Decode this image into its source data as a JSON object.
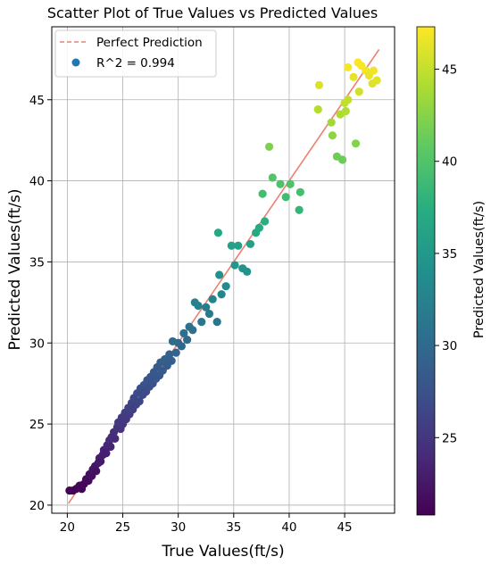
{
  "chart_data": {
    "type": "scatter",
    "title": "Scatter Plot of True Values vs Predicted Values",
    "xlabel": "True Values(ft/s)",
    "ylabel": "Predicted Values(ft/s)",
    "xlim": [
      18.6,
      49.5
    ],
    "ylim": [
      19.5,
      49.5
    ],
    "x_ticks": [
      20,
      25,
      30,
      35,
      40,
      45
    ],
    "y_ticks": [
      20,
      25,
      30,
      35,
      40,
      45
    ],
    "grid": true,
    "legend_position": "top-left",
    "legend": [
      {
        "label": "Perfect Prediction",
        "kind": "line",
        "color": "#f07f6f"
      },
      {
        "label": "R^2 = 0.994",
        "kind": "marker",
        "color": "#1f77b4"
      }
    ],
    "reference_line": {
      "x": [
        20.1,
        48.1
      ],
      "y": [
        20.1,
        48.1
      ],
      "color": "#f07f6f"
    },
    "colorbar": {
      "label": "Predicted Values(ft/s)",
      "colormap": "viridis",
      "range": [
        20.8,
        47.3
      ],
      "ticks": [
        25,
        30,
        35,
        40,
        45
      ]
    },
    "series": [
      {
        "points": [
          [
            20.2,
            20.9
          ],
          [
            20.5,
            20.9
          ],
          [
            20.8,
            21.0
          ],
          [
            21.1,
            21.2
          ],
          [
            21.3,
            21.0
          ],
          [
            21.5,
            21.3
          ],
          [
            21.7,
            21.6
          ],
          [
            21.9,
            21.5
          ],
          [
            22.0,
            21.9
          ],
          [
            22.2,
            21.8
          ],
          [
            22.3,
            22.2
          ],
          [
            22.5,
            22.4
          ],
          [
            22.6,
            22.1
          ],
          [
            22.8,
            22.6
          ],
          [
            22.9,
            22.9
          ],
          [
            23.0,
            22.7
          ],
          [
            23.2,
            23.1
          ],
          [
            23.3,
            23.4
          ],
          [
            23.5,
            23.2
          ],
          [
            23.6,
            23.7
          ],
          [
            23.8,
            24.0
          ],
          [
            23.9,
            23.6
          ],
          [
            24.0,
            24.2
          ],
          [
            24.2,
            24.5
          ],
          [
            24.3,
            24.1
          ],
          [
            24.5,
            24.8
          ],
          [
            24.6,
            25.1
          ],
          [
            24.8,
            24.7
          ],
          [
            24.9,
            25.4
          ],
          [
            25.0,
            25.0
          ],
          [
            25.2,
            25.7
          ],
          [
            25.3,
            25.3
          ],
          [
            25.5,
            26.0
          ],
          [
            25.6,
            25.6
          ],
          [
            25.8,
            26.3
          ],
          [
            25.9,
            25.9
          ],
          [
            26.0,
            26.6
          ],
          [
            26.2,
            26.2
          ],
          [
            26.3,
            26.9
          ],
          [
            26.5,
            26.4
          ],
          [
            26.6,
            27.2
          ],
          [
            26.8,
            26.8
          ],
          [
            26.9,
            27.4
          ],
          [
            27.1,
            27.0
          ],
          [
            27.2,
            27.7
          ],
          [
            27.4,
            27.3
          ],
          [
            27.5,
            27.9
          ],
          [
            27.7,
            27.5
          ],
          [
            27.8,
            28.2
          ],
          [
            28.0,
            27.8
          ],
          [
            28.1,
            28.5
          ],
          [
            28.3,
            28.0
          ],
          [
            28.4,
            28.8
          ],
          [
            28.6,
            28.3
          ],
          [
            28.8,
            29.0
          ],
          [
            29.0,
            28.6
          ],
          [
            29.2,
            29.3
          ],
          [
            29.4,
            28.9
          ],
          [
            29.5,
            30.1
          ],
          [
            29.8,
            29.4
          ],
          [
            30.0,
            30.0
          ],
          [
            30.3,
            29.8
          ],
          [
            30.5,
            30.6
          ],
          [
            30.8,
            30.2
          ],
          [
            31.0,
            31.0
          ],
          [
            31.3,
            30.8
          ],
          [
            31.5,
            32.5
          ],
          [
            31.8,
            32.3
          ],
          [
            32.1,
            31.3
          ],
          [
            32.5,
            32.2
          ],
          [
            32.8,
            31.8
          ],
          [
            33.1,
            32.7
          ],
          [
            33.5,
            31.3
          ],
          [
            33.6,
            36.8
          ],
          [
            33.7,
            34.2
          ],
          [
            33.9,
            33.0
          ],
          [
            34.3,
            33.5
          ],
          [
            34.8,
            36.0
          ],
          [
            35.1,
            34.8
          ],
          [
            35.4,
            36.0
          ],
          [
            35.8,
            34.6
          ],
          [
            36.2,
            34.4
          ],
          [
            36.5,
            36.1
          ],
          [
            37.0,
            36.8
          ],
          [
            37.3,
            37.1
          ],
          [
            37.6,
            39.2
          ],
          [
            37.8,
            37.5
          ],
          [
            38.2,
            42.1
          ],
          [
            38.5,
            40.2
          ],
          [
            39.2,
            39.8
          ],
          [
            39.7,
            39.0
          ],
          [
            40.1,
            39.8
          ],
          [
            41.0,
            39.3
          ],
          [
            40.9,
            38.2
          ],
          [
            42.7,
            45.9
          ],
          [
            42.6,
            44.4
          ],
          [
            43.8,
            43.6
          ],
          [
            43.9,
            42.8
          ],
          [
            44.3,
            41.5
          ],
          [
            44.6,
            44.1
          ],
          [
            44.8,
            41.3
          ],
          [
            45.0,
            44.8
          ],
          [
            45.1,
            44.3
          ],
          [
            45.3,
            45.0
          ],
          [
            45.3,
            47.0
          ],
          [
            46.0,
            42.3
          ],
          [
            45.8,
            46.4
          ],
          [
            46.3,
            45.5
          ],
          [
            46.2,
            47.3
          ],
          [
            46.5,
            47.1
          ],
          [
            46.9,
            46.8
          ],
          [
            47.2,
            46.5
          ],
          [
            47.5,
            46.0
          ],
          [
            47.9,
            46.2
          ],
          [
            47.6,
            46.8
          ]
        ]
      }
    ]
  }
}
